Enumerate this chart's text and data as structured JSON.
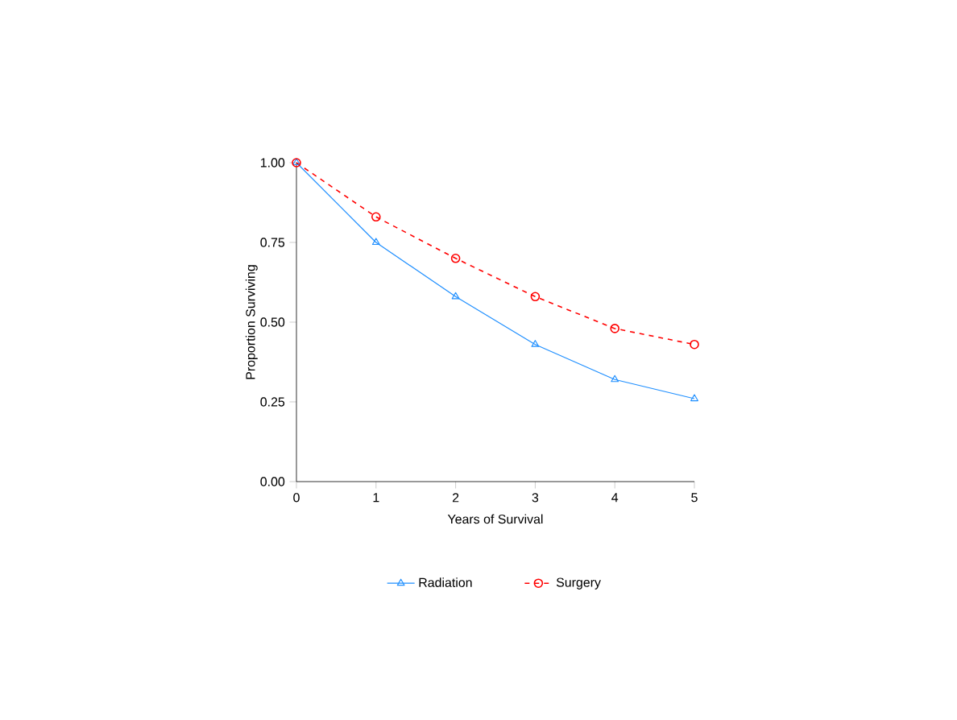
{
  "chart_data": {
    "type": "line",
    "xlabel": "Years of Survival",
    "ylabel": "Proportion Surviving",
    "x": [
      0,
      1,
      2,
      3,
      4,
      5
    ],
    "series": [
      {
        "name": "Radiation",
        "color": "#1f8fff",
        "marker": "triangle",
        "line_style": "solid",
        "values": [
          1.0,
          0.75,
          0.58,
          0.43,
          0.32,
          0.26
        ]
      },
      {
        "name": "Surgery",
        "color": "#ff0000",
        "marker": "circle",
        "line_style": "dashed",
        "values": [
          1.0,
          0.83,
          0.7,
          0.58,
          0.48,
          0.43
        ]
      }
    ],
    "xlim": [
      0,
      5
    ],
    "xticks": [
      0,
      1,
      2,
      3,
      4,
      5
    ],
    "ylim": [
      0,
      1
    ],
    "yticks": [
      {
        "value": 0,
        "label": "0.00"
      },
      {
        "value": 0.25,
        "label": "0.25"
      },
      {
        "value": 0.5,
        "label": "0.50"
      },
      {
        "value": 0.75,
        "label": "0.75"
      },
      {
        "value": 1,
        "label": "1.00"
      }
    ],
    "grid": false,
    "legend": "bottom"
  }
}
